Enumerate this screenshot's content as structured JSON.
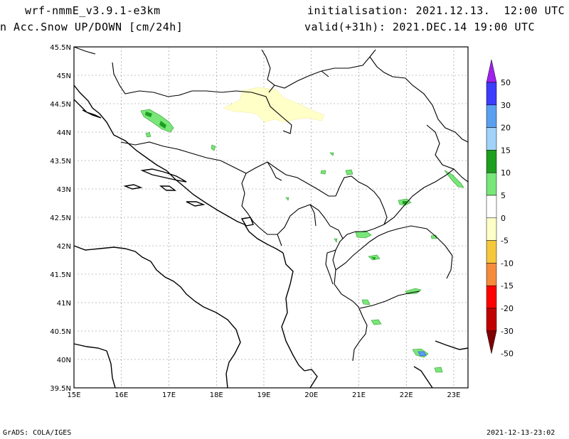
{
  "header": {
    "model": "wrf-nmmE_v3.9.1-e3km",
    "field": "n Acc.Snow UP/DOWN [cm/24h]",
    "init": "initialisation: 2021.12.13.  12:00 UTC",
    "valid": "valid(+31h): 2021.DEC.14 19:00 UTC"
  },
  "footer": {
    "left": "GrADS: COLA/IGES",
    "right": "2021-12-13-23:02"
  },
  "axes": {
    "lat_labels": [
      "45.5N",
      "45N",
      "44.5N",
      "44N",
      "43.5N",
      "43N",
      "42.5N",
      "42N",
      "41.5N",
      "41N",
      "40.5N",
      "40N",
      "39.5N"
    ],
    "lon_labels": [
      "15E",
      "16E",
      "17E",
      "18E",
      "19E",
      "20E",
      "21E",
      "22E",
      "23E"
    ]
  },
  "colorbar": {
    "labels": [
      "50",
      "30",
      "20",
      "15",
      "10",
      "5",
      "0",
      "-5",
      "-10",
      "-15",
      "-20",
      "-30",
      "-50"
    ],
    "colors": [
      "#a020f0",
      "#3c3cff",
      "#5aa0f0",
      "#a0d2fa",
      "#1e9e1e",
      "#78e678",
      "#ffffff",
      "#ffffc8",
      "#f5c83c",
      "#f58c3c",
      "#ff0000",
      "#c00000",
      "#800000"
    ]
  }
}
